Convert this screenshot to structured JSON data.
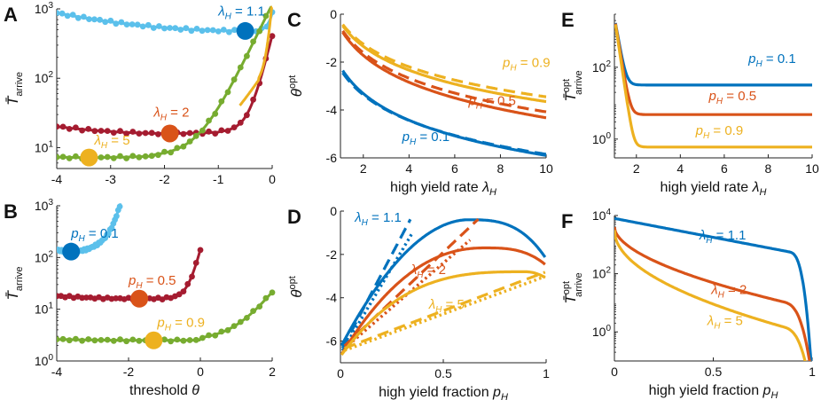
{
  "colors": {
    "light_blue": "#5bc0eb",
    "dark_red": "#a51c30",
    "green": "#77ac30",
    "blue": "#0072bd",
    "orange": "#d95319",
    "yellow": "#edb120",
    "axis": "#222222"
  },
  "chart_data": [
    {
      "id": "A",
      "type": "scatter",
      "panel_label": "A",
      "yscale": "log",
      "xlim": [
        -4,
        0
      ],
      "ylim": [
        5,
        1000
      ],
      "xticks": [
        -4,
        -3,
        -2,
        -1,
        0
      ],
      "xtick_labels": [
        "-4",
        "-3",
        "-2",
        "-1",
        "0"
      ],
      "yticks": [
        10,
        100,
        1000
      ],
      "ytick_labels": [
        "10<sup>1</sup>",
        "10<sup>2</sup>",
        "10<sup>3</sup>"
      ],
      "ylabel": "T̄arrive",
      "xlabel": "",
      "series": [
        {
          "name": "λ_H = 1.1",
          "color": "light_blue",
          "model": "A1",
          "x_start": -4,
          "x_end": 0,
          "min_x": -0.5,
          "min_y": 480
        },
        {
          "name": "λ_H = 2",
          "color": "dark_red",
          "model": "A2",
          "x_start": -4,
          "x_end": 0,
          "min_x": -1.9,
          "min_y": 16
        },
        {
          "name": "λ_H = 5",
          "color": "green",
          "model": "A3",
          "x_start": -4,
          "x_end": 0,
          "min_x": -3.4,
          "min_y": 7.2
        }
      ],
      "labels": [
        {
          "text": "λH = 1.1",
          "x": -1.0,
          "y": 800,
          "color": "blue"
        },
        {
          "text": "λH = 2",
          "x": -2.2,
          "y": 28,
          "color": "orange"
        },
        {
          "text": "λH = 5",
          "x": -3.3,
          "y": 11,
          "color": "yellow"
        }
      ]
    },
    {
      "id": "B",
      "type": "scatter",
      "panel_label": "B",
      "yscale": "log",
      "xlim": [
        -4,
        2
      ],
      "ylim": [
        1,
        1000
      ],
      "xticks": [
        -4,
        -2,
        0,
        2
      ],
      "xtick_labels": [
        "-4",
        "-2",
        "0",
        "2"
      ],
      "yticks": [
        1,
        10,
        100,
        1000
      ],
      "ytick_labels": [
        "10<sup>0</sup>",
        "10<sup>1</sup>",
        "10<sup>2</sup>",
        "10<sup>3</sup>"
      ],
      "ylabel": "T̄arrive",
      "xlabel": "threshold θ",
      "series": [
        {
          "name": "p_H = 0.1",
          "color": "light_blue",
          "model": "B1",
          "x_start": -4,
          "x_end": -2.2,
          "min_x": -3.6,
          "min_y": 130
        },
        {
          "name": "p_H = 0.5",
          "color": "dark_red",
          "model": "B2",
          "x_start": -4,
          "x_end": 0,
          "min_x": -1.7,
          "min_y": 16
        },
        {
          "name": "p_H = 0.9",
          "color": "green",
          "model": "B3",
          "x_start": -4,
          "x_end": 2,
          "min_x": -1.3,
          "min_y": 2.5
        }
      ],
      "labels": [
        {
          "text": "pH = 0.1",
          "x": -3.6,
          "y": 240,
          "color": "blue"
        },
        {
          "text": "pH = 0.5",
          "x": -2.0,
          "y": 30,
          "color": "orange"
        },
        {
          "text": "pH = 0.9",
          "x": -1.2,
          "y": 4.6,
          "color": "yellow"
        }
      ]
    },
    {
      "id": "C",
      "type": "line",
      "panel_label": "C",
      "yscale": "linear",
      "xlim": [
        1,
        10
      ],
      "ylim": [
        -6,
        0
      ],
      "xticks": [
        2,
        4,
        6,
        8,
        10
      ],
      "xtick_labels": [
        "2",
        "4",
        "6",
        "8",
        "10"
      ],
      "yticks": [
        -6,
        -4,
        -2,
        0
      ],
      "ytick_labels": [
        "-6",
        "-4",
        "-2",
        "0"
      ],
      "ylabel": "θopt",
      "xlabel": "high yield rate λH",
      "series": [
        {
          "name": "p_H = 0.1",
          "color": "blue",
          "model": "C1",
          "style": "solid"
        },
        {
          "name": "p_H = 0.1 approx",
          "color": "blue",
          "model": "C1d",
          "style": "dash"
        },
        {
          "name": "p_H = 0.5",
          "color": "orange",
          "model": "C2",
          "style": "solid"
        },
        {
          "name": "p_H = 0.5 approx",
          "color": "orange",
          "model": "C2d",
          "style": "dash"
        },
        {
          "name": "p_H = 0.9",
          "color": "yellow",
          "model": "C3",
          "style": "solid"
        },
        {
          "name": "p_H = 0.9 approx",
          "color": "yellow",
          "model": "C3d",
          "style": "dash"
        }
      ],
      "labels": [
        {
          "text": "pH = 0.9",
          "x": 8.1,
          "y": -2.2,
          "color": "yellow"
        },
        {
          "text": "pH = 0.5",
          "x": 6.6,
          "y": -3.8,
          "color": "orange"
        },
        {
          "text": "pH = 0.1",
          "x": 3.7,
          "y": -5.3,
          "color": "blue"
        }
      ]
    },
    {
      "id": "D",
      "type": "line",
      "panel_label": "D",
      "yscale": "linear",
      "xlim": [
        0,
        1
      ],
      "ylim": [
        -7,
        0
      ],
      "xticks": [
        0,
        0.5,
        1
      ],
      "xtick_labels": [
        "0",
        "0.5",
        "1"
      ],
      "yticks": [
        -6,
        -4,
        -2,
        0
      ],
      "ytick_labels": [
        "-6",
        "-4",
        "-2",
        "0"
      ],
      "ylabel": "θopt",
      "xlabel": "high yield fraction pH",
      "series": [
        {
          "name": "λ_H = 1.1",
          "color": "blue",
          "model": "D1",
          "style": "solid"
        },
        {
          "name": "λ_H = 1.1 approx",
          "color": "blue",
          "model": "D1d",
          "style": "dash"
        },
        {
          "name": "λ_H = 1.1 approx2",
          "color": "blue",
          "model": "D1o",
          "style": "dot"
        },
        {
          "name": "λ_H = 2",
          "color": "orange",
          "model": "D2",
          "style": "solid"
        },
        {
          "name": "λ_H = 2 approx",
          "color": "orange",
          "model": "D2d",
          "style": "dash"
        },
        {
          "name": "λ_H = 2 approx2",
          "color": "orange",
          "model": "D2o",
          "style": "dot"
        },
        {
          "name": "λ_H = 5",
          "color": "yellow",
          "model": "D3",
          "style": "solid"
        },
        {
          "name": "λ_H = 5 approx",
          "color": "yellow",
          "model": "D3d",
          "style": "dash"
        },
        {
          "name": "λ_H = 5 approx2",
          "color": "yellow",
          "model": "D3o",
          "style": "dot"
        }
      ],
      "labels": [
        {
          "text": "λH = 1.1",
          "x": 0.07,
          "y": -0.5,
          "color": "blue"
        },
        {
          "text": "λH = 2",
          "x": 0.34,
          "y": -2.9,
          "color": "orange"
        },
        {
          "text": "λH = 5",
          "x": 0.43,
          "y": -4.5,
          "color": "yellow"
        }
      ]
    },
    {
      "id": "E",
      "type": "line",
      "panel_label": "E",
      "yscale": "log",
      "xlim": [
        1,
        10
      ],
      "ylim": [
        0.3,
        3000
      ],
      "xticks": [
        2,
        4,
        6,
        8,
        10
      ],
      "xtick_labels": [
        "2",
        "4",
        "6",
        "8",
        "10"
      ],
      "yticks": [
        1,
        100
      ],
      "ytick_labels": [
        "10<sup>0</sup>",
        "10<sup>2</sup>"
      ],
      "ylabel": "T̄optarrive",
      "xlabel": "high yield rate λH",
      "series": [
        {
          "name": "p_H = 0.1",
          "color": "blue",
          "model": "E1",
          "style": "solid"
        },
        {
          "name": "p_H = 0.5",
          "color": "orange",
          "model": "E2",
          "style": "solid"
        },
        {
          "name": "p_H = 0.9",
          "color": "yellow",
          "model": "E3",
          "style": "solid"
        }
      ],
      "labels": [
        {
          "text": "pH = 0.1",
          "x": 7.1,
          "y": 130,
          "color": "blue"
        },
        {
          "text": "pH = 0.5",
          "x": 5.3,
          "y": 12,
          "color": "orange"
        },
        {
          "text": "pH = 0.9",
          "x": 4.7,
          "y": 1.3,
          "color": "yellow"
        }
      ]
    },
    {
      "id": "F",
      "type": "line",
      "panel_label": "F",
      "yscale": "log",
      "xlim": [
        0,
        1
      ],
      "ylim": [
        0.1,
        10000
      ],
      "xticks": [
        0,
        0.5,
        1
      ],
      "xtick_labels": [
        "0",
        "0.5",
        "1"
      ],
      "yticks": [
        1,
        100,
        10000
      ],
      "ytick_labels": [
        "10<sup>0</sup>",
        "10<sup>2</sup>",
        "10<sup>4</sup>"
      ],
      "ylabel": "T̄optarrive",
      "xlabel": "high yield fraction pH",
      "series": [
        {
          "name": "λ_H = 1.1",
          "color": "blue",
          "model": "F1",
          "style": "solid"
        },
        {
          "name": "λ_H = 2",
          "color": "orange",
          "model": "F2",
          "style": "solid"
        },
        {
          "name": "λ_H = 5",
          "color": "yellow",
          "model": "F3",
          "style": "solid"
        }
      ],
      "labels": [
        {
          "text": "λH = 1.1",
          "x": 0.43,
          "y": 1500,
          "color": "blue"
        },
        {
          "text": "λH = 2",
          "x": 0.49,
          "y": 20,
          "color": "orange"
        },
        {
          "text": "λH = 5",
          "x": 0.47,
          "y": 1.7,
          "color": "yellow"
        }
      ]
    }
  ]
}
